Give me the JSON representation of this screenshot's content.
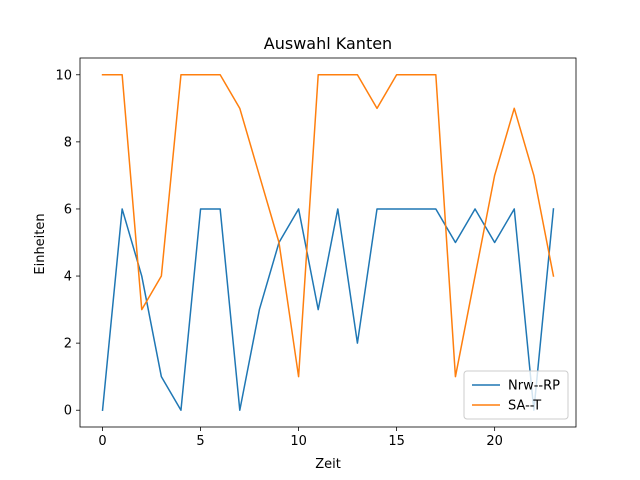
{
  "chart_data": {
    "type": "line",
    "title": "Auswahl Kanten",
    "xlabel": "Zeit",
    "ylabel": "Einheiten",
    "xlim": [
      -1.15,
      24.15
    ],
    "ylim": [
      -0.5,
      10.5
    ],
    "xticks": [
      0,
      5,
      10,
      15,
      20
    ],
    "yticks": [
      0,
      2,
      4,
      6,
      8,
      10
    ],
    "grid": false,
    "legend_position": "lower right",
    "x": [
      0,
      1,
      2,
      3,
      4,
      5,
      6,
      7,
      8,
      9,
      10,
      11,
      12,
      13,
      14,
      15,
      16,
      17,
      18,
      19,
      20,
      21,
      22,
      23
    ],
    "series": [
      {
        "name": "Nrw--RP",
        "color": "#1f77b4",
        "values": [
          0,
          6,
          4,
          1,
          0,
          6,
          6,
          0,
          3,
          5,
          6,
          3,
          6,
          2,
          6,
          6,
          6,
          6,
          5,
          6,
          5,
          6,
          0,
          6
        ]
      },
      {
        "name": "SA--T",
        "color": "#ff7f0e",
        "values": [
          10,
          10,
          3,
          4,
          10,
          10,
          10,
          9,
          7,
          5,
          1,
          10,
          10,
          10,
          9,
          10,
          10,
          10,
          1,
          4,
          7,
          9,
          7,
          4
        ]
      }
    ]
  }
}
